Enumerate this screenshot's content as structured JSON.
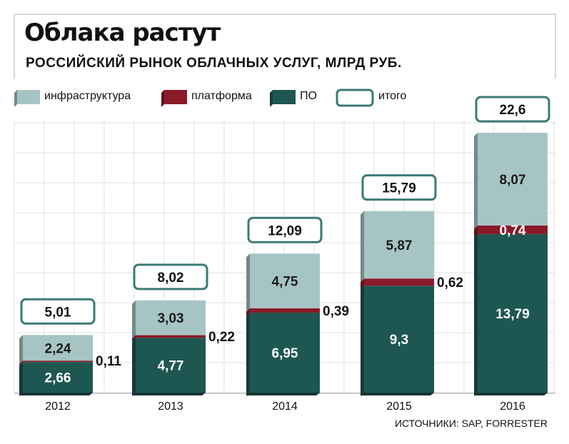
{
  "header": {
    "title": "Облака растут",
    "subtitle": "РОССИЙСКИЙ РЫНОК ОБЛАЧНЫХ УСЛУГ, МЛРД РУБ."
  },
  "legend": {
    "infra": "инфраструктура",
    "platform": "платформа",
    "software": "ПО",
    "total": "итого"
  },
  "source": "ИСТОЧНИКИ: SAP, FORRESTER",
  "colors": {
    "infra": "#a7c4c4",
    "platform": "#8a1a28",
    "software": "#1e5652",
    "total_border": "#3b7a75",
    "grid": "#e2e2e2"
  },
  "chart_data": {
    "type": "bar",
    "stacked": true,
    "categories": [
      "2012",
      "2013",
      "2014",
      "2015",
      "2016"
    ],
    "series": [
      {
        "name": "ПО",
        "values": [
          2.66,
          4.77,
          6.95,
          9.3,
          13.79
        ],
        "labels": [
          "2,66",
          "4,77",
          "6,95",
          "9,3",
          "13,79"
        ]
      },
      {
        "name": "платформа",
        "values": [
          0.11,
          0.22,
          0.39,
          0.62,
          0.74
        ],
        "labels": [
          "0,11",
          "0,22",
          "0,39",
          "0,62",
          "0,74"
        ]
      },
      {
        "name": "инфраструктура",
        "values": [
          2.24,
          3.03,
          4.75,
          5.87,
          8.07
        ],
        "labels": [
          "2,24",
          "3,03",
          "4,75",
          "5,87",
          "8,07"
        ]
      }
    ],
    "totals": {
      "name": "итого",
      "values": [
        5.01,
        8.02,
        12.09,
        15.79,
        22.6
      ],
      "labels": [
        "5,01",
        "8,02",
        "12,09",
        "15,79",
        "22,6"
      ]
    },
    "title": "Облака растут",
    "subtitle": "РОССИЙСКИЙ РЫНОК ОБЛАЧНЫХ УСЛУГ, МЛРД РУБ.",
    "xlabel": "",
    "ylabel": "",
    "ylim": [
      0,
      23
    ],
    "grid": true,
    "legend_position": "top-left"
  }
}
